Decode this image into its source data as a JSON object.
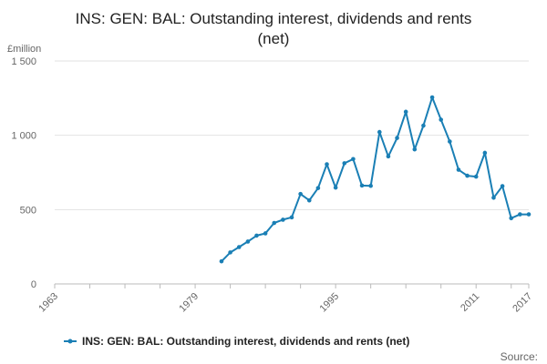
{
  "chart_data": {
    "type": "line",
    "title_lines": [
      "INS: GEN: BAL: Outstanding interest, dividends and rents",
      "(net)"
    ],
    "ylabel": "£million",
    "xlabel": "",
    "xlim": [
      1963,
      2017
    ],
    "ylim": [
      0,
      1500
    ],
    "x_ticks": [
      1963,
      1967,
      1971,
      1975,
      1979,
      1983,
      1987,
      1991,
      1995,
      1999,
      2003,
      2007,
      2011,
      2015,
      2017
    ],
    "x_tick_labels": [
      "1963",
      "",
      "",
      "",
      "1979",
      "",
      "",
      "",
      "1995",
      "",
      "",
      "",
      "2011",
      "",
      "2017"
    ],
    "y_ticks": [
      0,
      500,
      1000,
      1500
    ],
    "y_tick_labels": [
      "0",
      "500",
      "1 000",
      "1 500"
    ],
    "grid": true,
    "legend_position": "bottom",
    "series": [
      {
        "name": "INS: GEN: BAL: Outstanding interest, dividends and rents (net)",
        "color": "#1a7fb5",
        "x": [
          1982,
          1983,
          1984,
          1985,
          1986,
          1987,
          1988,
          1989,
          1990,
          1991,
          1992,
          1993,
          1994,
          1995,
          1996,
          1997,
          1998,
          1999,
          2000,
          2001,
          2002,
          2003,
          2004,
          2005,
          2006,
          2007,
          2008,
          2009,
          2010,
          2011,
          2012,
          2013,
          2014,
          2015,
          2016,
          2017
        ],
        "values": [
          152,
          212,
          248,
          285,
          325,
          340,
          410,
          432,
          448,
          605,
          562,
          645,
          805,
          648,
          812,
          840,
          662,
          660,
          1022,
          858,
          982,
          1158,
          905,
          1065,
          1255,
          1105,
          958,
          768,
          728,
          722,
          882,
          580,
          658,
          442,
          468,
          468
        ]
      }
    ],
    "source_label": "Source:"
  }
}
